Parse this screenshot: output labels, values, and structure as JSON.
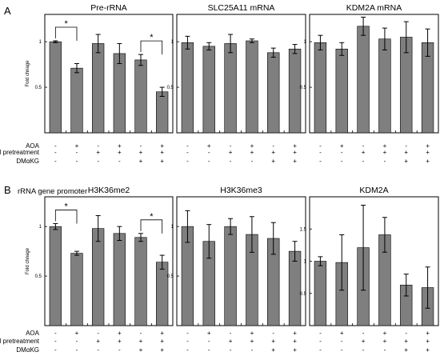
{
  "panel_a_letter": "A",
  "panel_b_letter": "B",
  "panel_b_subtitle": "rRNA gene promoter",
  "ylabel": "Fold chnage",
  "row_labels": [
    "AOA",
    "NPM pretreatment",
    "DMαKG"
  ],
  "condition_signs": [
    [
      "-",
      "+",
      "-",
      "+",
      "-",
      "+"
    ],
    [
      "-",
      "-",
      "+",
      "+",
      "+",
      "+"
    ],
    [
      "-",
      "-",
      "-",
      "-",
      "+",
      "+"
    ]
  ],
  "chart_data": [
    {
      "type": "bar",
      "title": "Pre-rRNA",
      "ylim": [
        0,
        1.3
      ],
      "yticks": [
        0.5,
        1
      ],
      "values": [
        1.0,
        0.71,
        0.98,
        0.87,
        0.8,
        0.45
      ],
      "errors": [
        0.01,
        0.05,
        0.1,
        0.11,
        0.06,
        0.05
      ],
      "significance": [
        {
          "from": 0,
          "to": 1,
          "label": "*"
        },
        {
          "from": 4,
          "to": 5,
          "label": "*"
        }
      ]
    },
    {
      "type": "bar",
      "title": "SLC25A11 mRNA",
      "ylim": [
        0,
        1.3
      ],
      "yticks": [
        0.5,
        1
      ],
      "values": [
        0.99,
        0.95,
        0.98,
        1.01,
        0.88,
        0.92
      ],
      "errors": [
        0.07,
        0.04,
        0.1,
        0.02,
        0.05,
        0.05
      ],
      "significance": []
    },
    {
      "type": "bar",
      "title": "KDM2A mRNA",
      "ylim": [
        0,
        1.3
      ],
      "yticks": [
        0.5,
        1
      ],
      "values": [
        0.99,
        0.92,
        1.17,
        1.03,
        1.05,
        0.99
      ],
      "errors": [
        0.08,
        0.07,
        0.1,
        0.12,
        0.17,
        0.15
      ],
      "significance": []
    },
    {
      "type": "bar",
      "title": "H3K36me2",
      "ylim": [
        0,
        1.3
      ],
      "yticks": [
        0.5,
        1
      ],
      "values": [
        1.0,
        0.73,
        0.98,
        0.93,
        0.89,
        0.64
      ],
      "errors": [
        0.03,
        0.02,
        0.13,
        0.07,
        0.04,
        0.07
      ],
      "significance": [
        {
          "from": 0,
          "to": 1,
          "label": "*"
        },
        {
          "from": 4,
          "to": 5,
          "label": "*"
        }
      ]
    },
    {
      "type": "bar",
      "title": "H3K36me3",
      "ylim": [
        0,
        1.3
      ],
      "yticks": [
        0.5,
        1
      ],
      "values": [
        1.0,
        0.85,
        1.0,
        0.92,
        0.88,
        0.75
      ],
      "errors": [
        0.16,
        0.17,
        0.08,
        0.18,
        0.16,
        0.1
      ],
      "significance": []
    },
    {
      "type": "bar",
      "title": "KDM2A",
      "ylim": [
        0,
        2.0
      ],
      "yticks": [
        0.5,
        1,
        1.5
      ],
      "values": [
        1.0,
        0.98,
        1.21,
        1.41,
        0.63,
        0.59
      ],
      "errors": [
        0.07,
        0.43,
        0.66,
        0.27,
        0.17,
        0.32
      ],
      "significance": []
    }
  ]
}
